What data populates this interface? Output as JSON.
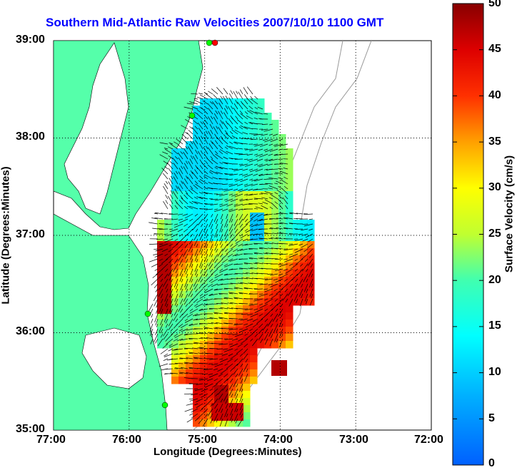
{
  "title": "Southern Mid-Atlantic Raw Velocities 2007/10/10 1100 GMT",
  "x_axis": {
    "label": "Longitude (Degrees:Minutes)",
    "ticks": [
      "77:00",
      "76:00",
      "75:00",
      "74:00",
      "73:00",
      "72:00"
    ]
  },
  "y_axis": {
    "label": "Latitude (Degrees:Minutes)",
    "ticks": [
      "39:00",
      "38:00",
      "37:00",
      "36:00",
      "35:00"
    ]
  },
  "colorbar": {
    "label": "Surface Velocity (cm/s)",
    "ticks": [
      "50",
      "45",
      "40",
      "35",
      "30",
      "25",
      "20",
      "15",
      "10",
      "5",
      "0"
    ],
    "range": [
      0,
      50
    ],
    "colormap": "jet"
  },
  "map": {
    "lon_range": [
      -77,
      -72
    ],
    "lat_range": [
      35,
      39
    ],
    "land_color": "#55ffaa",
    "grid": "dotted",
    "site_marker_color": "#00ff00",
    "active_site_color": "#ff0000"
  }
}
